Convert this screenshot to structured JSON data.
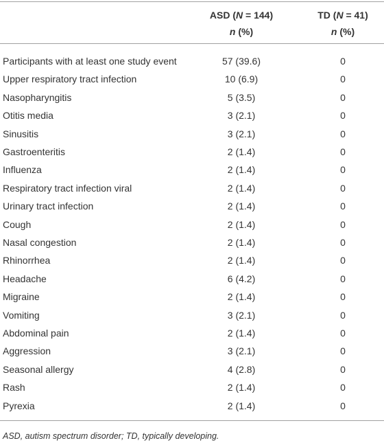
{
  "table": {
    "header": {
      "asd": {
        "line1": [
          "ASD (",
          "N",
          " = 144)"
        ],
        "line2": [
          "n",
          " (%)"
        ]
      },
      "td": {
        "line1": [
          "TD (",
          "N",
          " = 41)"
        ],
        "line2": [
          "n",
          " (%)"
        ]
      }
    },
    "rows": [
      [
        "Participants with at least one study event",
        "57 (39.6)",
        "0"
      ],
      [
        "Upper respiratory tract infection",
        "10 (6.9)",
        "0"
      ],
      [
        "Nasopharyngitis",
        "5 (3.5)",
        "0"
      ],
      [
        "Otitis media",
        "3 (2.1)",
        "0"
      ],
      [
        "Sinusitis",
        "3 (2.1)",
        "0"
      ],
      [
        "Gastroenteritis",
        "2 (1.4)",
        "0"
      ],
      [
        "Influenza",
        "2 (1.4)",
        "0"
      ],
      [
        "Respiratory tract infection viral",
        "2 (1.4)",
        "0"
      ],
      [
        "Urinary tract infection",
        "2 (1.4)",
        "0"
      ],
      [
        "Cough",
        "2 (1.4)",
        "0"
      ],
      [
        "Nasal congestion",
        "2 (1.4)",
        "0"
      ],
      [
        "Rhinorrhea",
        "2 (1.4)",
        "0"
      ],
      [
        "Headache",
        "6 (4.2)",
        "0"
      ],
      [
        "Migraine",
        "2 (1.4)",
        "0"
      ],
      [
        "Vomiting",
        "3 (2.1)",
        "0"
      ],
      [
        "Abdominal pain",
        "2 (1.4)",
        "0"
      ],
      [
        "Aggression",
        "3 (2.1)",
        "0"
      ],
      [
        "Seasonal allergy",
        "4 (2.8)",
        "0"
      ],
      [
        "Rash",
        "2 (1.4)",
        "0"
      ],
      [
        "Pyrexia",
        "2 (1.4)",
        "0"
      ]
    ],
    "footnote": "ASD, autism spectrum disorder; TD, typically developing."
  }
}
